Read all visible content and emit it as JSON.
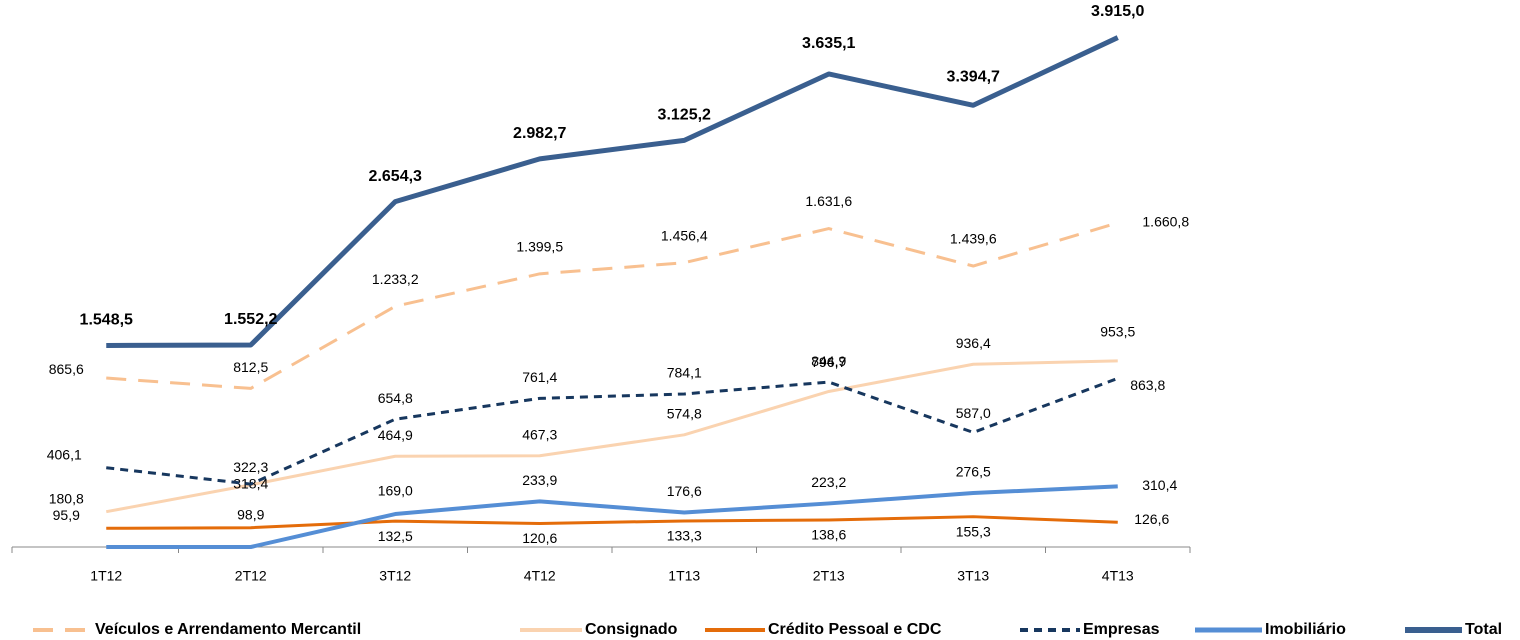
{
  "chart_data": {
    "type": "line",
    "categories": [
      "1T12",
      "2T12",
      "3T12",
      "4T12",
      "1T13",
      "2T13",
      "3T13",
      "4T13"
    ],
    "ylim": [
      0,
      2700
    ],
    "y2lim": [
      0,
      4050
    ],
    "legend": "bottom",
    "series": [
      {
        "name": "Veículos e Arrendamento Mercantil",
        "color": "#f8c090",
        "line_style": "long-dash",
        "values": [
          865.6,
          812.5,
          1233.2,
          1399.5,
          1456.4,
          1631.6,
          1439.6,
          1660.8
        ],
        "value_labels": [
          "865,6",
          "812,5",
          "1.233,2",
          "1.399,5",
          "1.456,4",
          "1.631,6",
          "1.439,6",
          "1.660,8"
        ]
      },
      {
        "name": "Consignado",
        "color": "#fad3b0",
        "line_style": "solid",
        "values": [
          180.8,
          318.4,
          464.9,
          467.3,
          574.8,
          796.7,
          936.4,
          953.5
        ],
        "value_labels": [
          "180,8",
          "318,4",
          "464,9",
          "467,3",
          "574,8",
          "796,7",
          "936,4",
          "953,5"
        ]
      },
      {
        "name": "Crédito Pessoal e CDC",
        "color": "#e46c0a",
        "line_style": "solid",
        "values": [
          95.9,
          98.9,
          132.5,
          120.6,
          133.3,
          138.6,
          155.3,
          126.6
        ],
        "value_labels": [
          "95,9",
          "98,9",
          "132,5",
          "120,6",
          "133,3",
          "138,6",
          "155,3",
          "126,6"
        ]
      },
      {
        "name": "Empresas",
        "color": "#17375e",
        "line_style": "short-dash",
        "values": [
          406.1,
          322.3,
          654.8,
          761.4,
          784.1,
          844.9,
          587.0,
          863.8
        ],
        "value_labels": [
          "406,1",
          "322,3",
          "654,8",
          "761,4",
          "784,1",
          "844,9",
          "587,0",
          "863,8"
        ]
      },
      {
        "name": "Imobiliário",
        "color": "#558ed5",
        "line_style": "solid",
        "values": [
          0,
          0,
          169.0,
          233.9,
          176.6,
          223.2,
          276.5,
          310.4
        ],
        "value_labels": [
          null,
          null,
          "169,0",
          "233,9",
          "176,6",
          "223,2",
          "276,5",
          "310,4"
        ]
      },
      {
        "name": "Total",
        "color": "#3a5f8f",
        "line_style": "solid",
        "axis": "y2",
        "values": [
          1548.5,
          1552.2,
          2654.3,
          2982.7,
          3125.2,
          3635.1,
          3394.7,
          3915.0
        ],
        "value_labels": [
          "1.548,5",
          "1.552,2",
          "2.654,3",
          "2.982,7",
          "3.125,2",
          "3.635,1",
          "3.394,7",
          "3.915,0"
        ]
      }
    ]
  }
}
